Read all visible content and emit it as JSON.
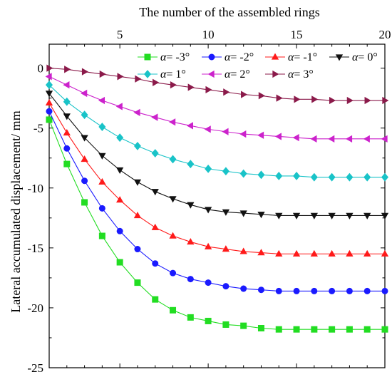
{
  "chart_data": {
    "type": "line",
    "title": "",
    "xlabel": "The number of the assembled rings",
    "ylabel": "Lateral accumulated displacement/ mm",
    "x_axis_position": "top",
    "xlim": [
      1,
      20
    ],
    "ylim": [
      -25,
      2
    ],
    "x_ticks": [
      5,
      10,
      15,
      20
    ],
    "y_ticks": [
      0,
      -5,
      -10,
      -15,
      -20,
      -25
    ],
    "grid": false,
    "legend_position": "top-right",
    "x": [
      1,
      2,
      3,
      4,
      5,
      6,
      7,
      8,
      9,
      10,
      11,
      12,
      13,
      14,
      15,
      16,
      17,
      18,
      19,
      20
    ],
    "series": [
      {
        "name": "-3°",
        "color": "#22dd22",
        "marker": "square",
        "values": [
          -4.3,
          -8.0,
          -11.2,
          -14.0,
          -16.2,
          -17.9,
          -19.3,
          -20.2,
          -20.8,
          -21.1,
          -21.4,
          -21.5,
          -21.7,
          -21.8,
          -21.8,
          -21.8,
          -21.8,
          -21.8,
          -21.8,
          -21.8
        ]
      },
      {
        "name": "-2°",
        "color": "#1a1aff",
        "marker": "circle",
        "values": [
          -3.6,
          -6.7,
          -9.4,
          -11.7,
          -13.6,
          -15.1,
          -16.3,
          -17.1,
          -17.6,
          -17.9,
          -18.2,
          -18.4,
          -18.5,
          -18.6,
          -18.6,
          -18.6,
          -18.6,
          -18.6,
          -18.6,
          -18.6
        ]
      },
      {
        "name": "-1°",
        "color": "#ff1a1a",
        "marker": "triangle-up",
        "values": [
          -2.9,
          -5.4,
          -7.6,
          -9.5,
          -11.0,
          -12.3,
          -13.3,
          -14.0,
          -14.5,
          -14.9,
          -15.1,
          -15.3,
          -15.4,
          -15.5,
          -15.5,
          -15.5,
          -15.5,
          -15.5,
          -15.5,
          -15.5
        ]
      },
      {
        "name": "0°",
        "color": "#111111",
        "marker": "triangle-down",
        "values": [
          -2.1,
          -4.0,
          -5.8,
          -7.3,
          -8.5,
          -9.5,
          -10.3,
          -10.9,
          -11.4,
          -11.8,
          -12.0,
          -12.1,
          -12.2,
          -12.3,
          -12.3,
          -12.3,
          -12.3,
          -12.3,
          -12.3,
          -12.3
        ]
      },
      {
        "name": "1°",
        "color": "#19c3c8",
        "marker": "diamond",
        "values": [
          -1.4,
          -2.8,
          -3.9,
          -4.9,
          -5.8,
          -6.5,
          -7.1,
          -7.6,
          -8.0,
          -8.4,
          -8.6,
          -8.8,
          -8.9,
          -9.0,
          -9.0,
          -9.1,
          -9.1,
          -9.1,
          -9.1,
          -9.1
        ]
      },
      {
        "name": "2°",
        "color": "#cc22cc",
        "marker": "triangle-left",
        "values": [
          -0.7,
          -1.4,
          -2.1,
          -2.7,
          -3.2,
          -3.7,
          -4.1,
          -4.5,
          -4.8,
          -5.1,
          -5.3,
          -5.5,
          -5.6,
          -5.7,
          -5.8,
          -5.9,
          -5.9,
          -5.9,
          -5.9,
          -5.9
        ]
      },
      {
        "name": "3°",
        "color": "#8b1a4a",
        "marker": "triangle-right",
        "values": [
          0.0,
          -0.1,
          -0.3,
          -0.5,
          -0.7,
          -0.9,
          -1.2,
          -1.4,
          -1.6,
          -1.8,
          -2.0,
          -2.2,
          -2.3,
          -2.5,
          -2.6,
          -2.6,
          -2.7,
          -2.7,
          -2.7,
          -2.7
        ]
      }
    ],
    "legend_prefix": "α="
  }
}
